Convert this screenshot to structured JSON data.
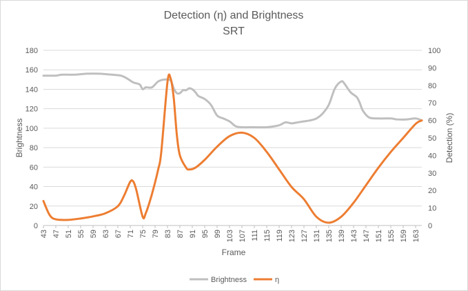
{
  "chart_data": {
    "type": "line",
    "title": "Detection (η) and Brightness",
    "subtitle": "SRT",
    "xlabel": "Frame",
    "ylabel_left": "Brightness",
    "ylabel_right": "Detection (%)",
    "ylim_left": [
      0,
      180
    ],
    "ylim_right": [
      0,
      100
    ],
    "xlim": [
      43,
      165
    ],
    "yticks_left": [
      0,
      20,
      40,
      60,
      80,
      100,
      120,
      140,
      160,
      180
    ],
    "yticks_right": [
      0,
      10,
      20,
      30,
      40,
      50,
      60,
      70,
      80,
      90,
      100
    ],
    "xticks": [
      43,
      47,
      51,
      55,
      59,
      63,
      67,
      71,
      75,
      79,
      83,
      87,
      91,
      95,
      99,
      103,
      107,
      111,
      115,
      119,
      123,
      127,
      131,
      135,
      139,
      143,
      147,
      151,
      155,
      159,
      163
    ],
    "grid": "horizontal",
    "legend_position": "bottom",
    "series": [
      {
        "name": "Brightness",
        "axis": "left",
        "color": "#bfbfbf",
        "points": [
          [
            43,
            154
          ],
          [
            47,
            154
          ],
          [
            49,
            155
          ],
          [
            53,
            155
          ],
          [
            57,
            156
          ],
          [
            61,
            156
          ],
          [
            65,
            155
          ],
          [
            68,
            154
          ],
          [
            70,
            151
          ],
          [
            72,
            147
          ],
          [
            74,
            145
          ],
          [
            75,
            140
          ],
          [
            76,
            142
          ],
          [
            78,
            142
          ],
          [
            80,
            148
          ],
          [
            82,
            150
          ],
          [
            84,
            149
          ],
          [
            85,
            141
          ],
          [
            86,
            136
          ],
          [
            87,
            136
          ],
          [
            88,
            139
          ],
          [
            89,
            139
          ],
          [
            90,
            141
          ],
          [
            91,
            140
          ],
          [
            92,
            137
          ],
          [
            93,
            133
          ],
          [
            95,
            130
          ],
          [
            97,
            124
          ],
          [
            99,
            113
          ],
          [
            101,
            110
          ],
          [
            103,
            107
          ],
          [
            105,
            102
          ],
          [
            107,
            101
          ],
          [
            111,
            101
          ],
          [
            115,
            101
          ],
          [
            119,
            103
          ],
          [
            121,
            106
          ],
          [
            123,
            105
          ],
          [
            125,
            106
          ],
          [
            127,
            107
          ],
          [
            129,
            108
          ],
          [
            131,
            110
          ],
          [
            133,
            115
          ],
          [
            135,
            124
          ],
          [
            137,
            141
          ],
          [
            139,
            148
          ],
          [
            140,
            146
          ],
          [
            142,
            137
          ],
          [
            144,
            132
          ],
          [
            145,
            126
          ],
          [
            146,
            118
          ],
          [
            148,
            111
          ],
          [
            151,
            110
          ],
          [
            155,
            110
          ],
          [
            157,
            109
          ],
          [
            160,
            109
          ],
          [
            163,
            110
          ],
          [
            165,
            108
          ]
        ]
      },
      {
        "name": "η",
        "axis": "right",
        "color": "#ed7d31",
        "points": [
          [
            43,
            14
          ],
          [
            45,
            6
          ],
          [
            47,
            3.5
          ],
          [
            51,
            3.2
          ],
          [
            55,
            4
          ],
          [
            59,
            5.2
          ],
          [
            63,
            7
          ],
          [
            67,
            11
          ],
          [
            69,
            17
          ],
          [
            71,
            25
          ],
          [
            72,
            25
          ],
          [
            73,
            20
          ],
          [
            75,
            5
          ],
          [
            76,
            7
          ],
          [
            78,
            18
          ],
          [
            80,
            32
          ],
          [
            81,
            42
          ],
          [
            83,
            82
          ],
          [
            84,
            84
          ],
          [
            85,
            73
          ],
          [
            86,
            52
          ],
          [
            87,
            40
          ],
          [
            89,
            33
          ],
          [
            90,
            32
          ],
          [
            92,
            33
          ],
          [
            95,
            37.5
          ],
          [
            99,
            45
          ],
          [
            103,
            51
          ],
          [
            107,
            53
          ],
          [
            111,
            50
          ],
          [
            115,
            42
          ],
          [
            119,
            32
          ],
          [
            123,
            22
          ],
          [
            127,
            15
          ],
          [
            131,
            5
          ],
          [
            135,
            1.6
          ],
          [
            139,
            5
          ],
          [
            143,
            13
          ],
          [
            147,
            23
          ],
          [
            151,
            33
          ],
          [
            155,
            42
          ],
          [
            159,
            50
          ],
          [
            163,
            58
          ],
          [
            165,
            60
          ]
        ]
      }
    ]
  }
}
